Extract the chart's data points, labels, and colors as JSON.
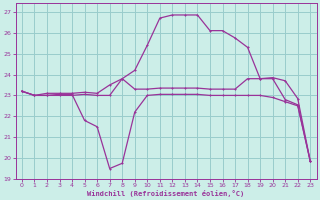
{
  "xlabel": "Windchill (Refroidissement éolien,°C)",
  "bg_color": "#cceee8",
  "line_color": "#993399",
  "grid_color": "#99cccc",
  "spine_color": "#993399",
  "xlim": [
    -0.5,
    23.5
  ],
  "ylim": [
    19,
    27.4
  ],
  "xticks": [
    0,
    1,
    2,
    3,
    4,
    5,
    6,
    7,
    8,
    9,
    10,
    11,
    12,
    13,
    14,
    15,
    16,
    17,
    18,
    19,
    20,
    21,
    22,
    23
  ],
  "yticks": [
    19,
    20,
    21,
    22,
    23,
    24,
    25,
    26,
    27
  ],
  "series1_x": [
    0,
    1,
    2,
    3,
    4,
    5,
    6,
    7,
    8,
    9,
    10,
    11,
    12,
    13,
    14,
    15,
    16,
    17,
    18,
    19,
    20,
    21,
    22,
    23
  ],
  "series1_y": [
    23.2,
    23.0,
    23.1,
    23.1,
    23.1,
    23.15,
    23.1,
    23.5,
    23.8,
    24.2,
    25.4,
    26.7,
    26.85,
    26.85,
    26.85,
    26.1,
    26.1,
    25.75,
    25.3,
    23.8,
    23.8,
    22.8,
    22.55,
    19.85
  ],
  "series2_x": [
    0,
    1,
    2,
    3,
    4,
    5,
    6,
    7,
    8,
    9,
    10,
    11,
    12,
    13,
    14,
    15,
    16,
    17,
    18,
    19,
    20,
    21,
    22,
    23
  ],
  "series2_y": [
    23.2,
    23.0,
    23.0,
    23.0,
    23.0,
    23.05,
    23.0,
    23.0,
    23.8,
    23.3,
    23.3,
    23.35,
    23.35,
    23.35,
    23.35,
    23.3,
    23.3,
    23.3,
    23.8,
    23.8,
    23.85,
    23.7,
    22.85,
    19.85
  ],
  "series3_x": [
    0,
    1,
    2,
    3,
    4,
    5,
    6,
    7,
    8,
    9,
    10,
    11,
    12,
    13,
    14,
    15,
    16,
    17,
    18,
    19,
    20,
    21,
    22,
    23
  ],
  "series3_y": [
    23.2,
    23.0,
    23.0,
    23.05,
    23.05,
    21.8,
    21.5,
    19.5,
    19.75,
    22.2,
    23.0,
    23.05,
    23.05,
    23.05,
    23.05,
    23.0,
    23.0,
    23.0,
    23.0,
    23.0,
    22.9,
    22.7,
    22.5,
    19.85
  ]
}
